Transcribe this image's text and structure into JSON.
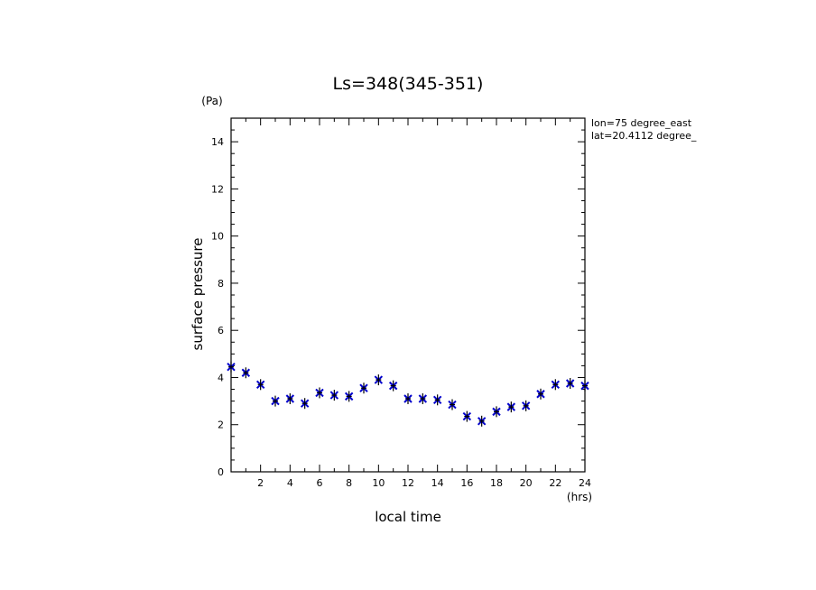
{
  "chart_data": {
    "type": "scatter",
    "title": "Ls=348(345-351)",
    "xlabel": "local time",
    "ylabel": "surface pressure",
    "x_unit": "(hrs)",
    "y_unit": "(Pa)",
    "xlim": [
      0,
      24
    ],
    "ylim": [
      0,
      15
    ],
    "x_ticks": [
      2,
      4,
      6,
      8,
      10,
      12,
      14,
      16,
      18,
      20,
      22,
      24
    ],
    "x_tick_labels": [
      "2",
      "4",
      "6",
      "8",
      "10",
      "12",
      "14",
      "16",
      "18",
      "20",
      "22",
      "24"
    ],
    "y_ticks": [
      0,
      2,
      4,
      6,
      8,
      10,
      12,
      14
    ],
    "y_tick_labels": [
      "0",
      "2",
      "4",
      "6",
      "8",
      "10",
      "12",
      "14"
    ],
    "annotations": [
      "lon=75 degree_east",
      "lat=20.4112 degree_"
    ],
    "grid": false,
    "series": [
      {
        "marker_blue": "x",
        "marker_black": "+",
        "color": "#0000cc",
        "x": [
          0,
          1,
          2,
          3,
          4,
          5,
          6,
          7,
          8,
          9,
          10,
          11,
          12,
          13,
          14,
          15,
          16,
          17,
          18,
          19,
          20,
          21,
          22,
          23,
          24
        ],
        "y": [
          4.45,
          4.2,
          3.7,
          3.0,
          3.1,
          2.9,
          3.35,
          3.25,
          3.2,
          3.55,
          3.9,
          3.65,
          3.1,
          3.1,
          3.05,
          2.85,
          2.35,
          2.15,
          2.55,
          2.75,
          2.8,
          3.3,
          3.7,
          3.75,
          3.65
        ]
      }
    ]
  }
}
